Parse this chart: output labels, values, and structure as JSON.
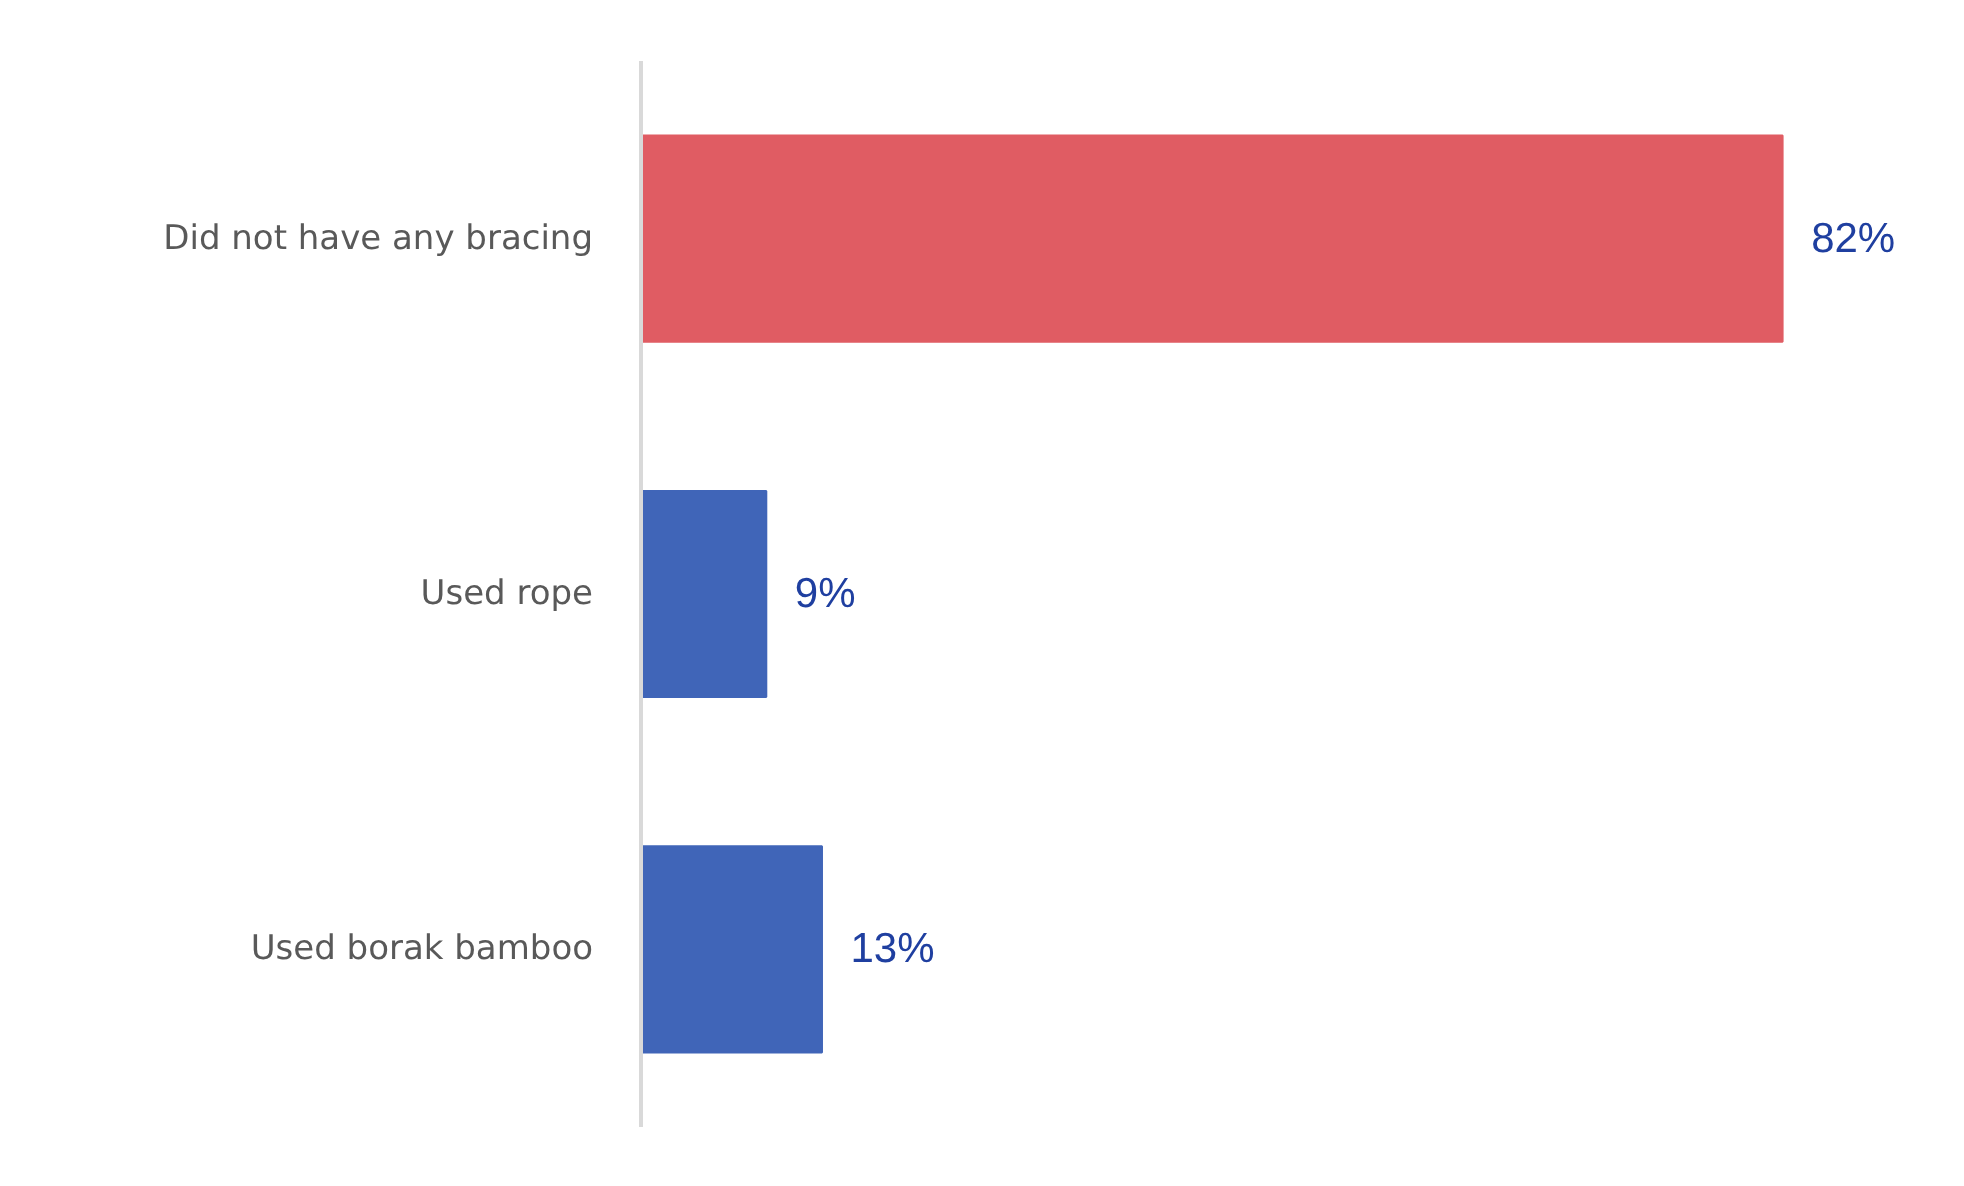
{
  "chart_data": {
    "type": "bar",
    "orientation": "horizontal",
    "categories": [
      "Did not have any bracing",
      "Used rope",
      "Used borak bamboo"
    ],
    "values": [
      82,
      9,
      13
    ],
    "colors": [
      "#e05c63",
      "#4065b8",
      "#4065b8"
    ],
    "value_labels": [
      "82%",
      "9%",
      "13%"
    ],
    "grid": false,
    "tick_labels": "y"
  }
}
